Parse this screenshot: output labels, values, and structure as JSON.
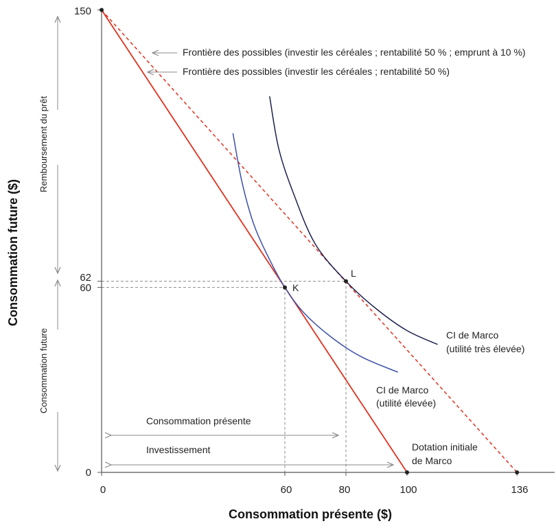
{
  "chart_data": {
    "type": "line",
    "title": "",
    "xlabel": "Consommation présente ($)",
    "ylabel": "Consommation future ($)",
    "xlim": [
      0,
      148
    ],
    "ylim": [
      0,
      150
    ],
    "x_ticks": [
      "0",
      "60",
      "80",
      "100",
      "136"
    ],
    "y_ticks": [
      "0",
      "60",
      "62",
      "150"
    ],
    "colors": {
      "frontier": "#e0301e",
      "ci_high": "#3b4fa8",
      "ci_very_high": "#1c1f4e",
      "guide": "#8a8a8a",
      "axis": "#555555",
      "arrow": "#8a8a8a"
    },
    "series": [
      {
        "name": "Frontière des possibles (investir les céréales ; rentabilité 50 %)",
        "style": "solid",
        "x": [
          0,
          100
        ],
        "y": [
          150,
          0
        ]
      },
      {
        "name": "Frontière des possibles (investir les céréales ; rentabilité 50 % ; emprunt à 10 %)",
        "style": "dashed",
        "x": [
          0,
          136
        ],
        "y": [
          150,
          0
        ]
      },
      {
        "name": "CI de Marco (utilité élevée)",
        "x": [
          43,
          46,
          50,
          55,
          60,
          66,
          75,
          85,
          97
        ],
        "y": [
          110,
          94,
          80,
          69,
          60,
          52,
          44,
          37.5,
          32.5
        ]
      },
      {
        "name": "CI de Marco (utilité très élevée)",
        "x": [
          55,
          58,
          63,
          70,
          80,
          90,
          100,
          110
        ],
        "y": [
          122,
          105,
          90,
          74,
          62,
          53,
          46,
          41.5
        ]
      }
    ],
    "points": [
      {
        "label": "K",
        "x": 60,
        "y": 60
      },
      {
        "label": "L",
        "x": 80,
        "y": 62
      },
      {
        "label": "",
        "x": 0,
        "y": 150
      },
      {
        "label": "",
        "x": 100,
        "y": 0
      },
      {
        "label": "",
        "x": 136,
        "y": 0
      }
    ],
    "annotations": {
      "frontier_borrow": "Frontière des possibles (investir les céréales ; rentabilité 50 % ; emprunt à 10 %)",
      "frontier_invest": "Frontière des possibles (investir les céréales ; rentabilité 50 %)",
      "ci_high_line1": "CI de Marco",
      "ci_high_line2": "(utilité élevée)",
      "ci_very_high_line1": "CI de Marco",
      "ci_very_high_line2": "(utilité très élevée)",
      "endowment_line1": "Dotation initiale",
      "endowment_line2": "de Marco",
      "consommation_presente": "Consommation présente",
      "investissement": "Investissement",
      "remboursement": "Remboursement du prêt",
      "consommation_future": "Consommation future",
      "point_k": "K",
      "point_l": "L"
    }
  }
}
